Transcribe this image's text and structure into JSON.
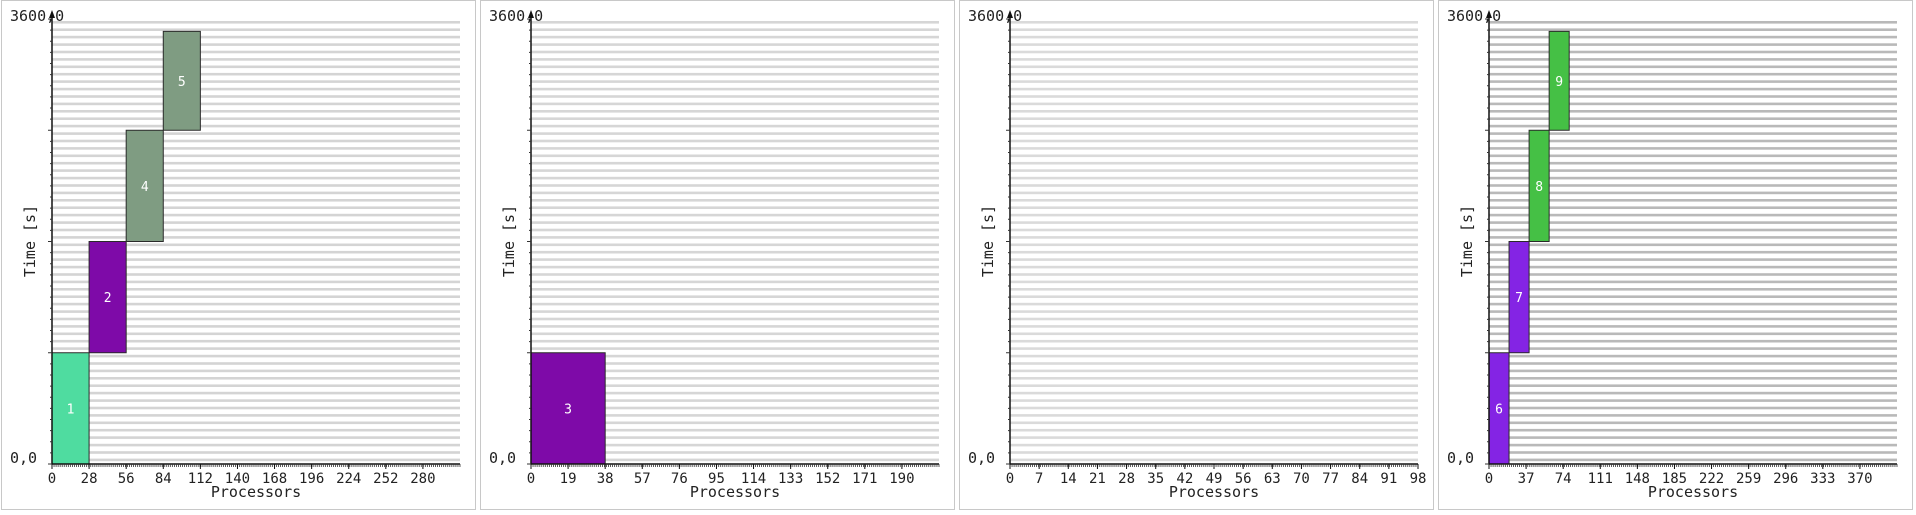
{
  "charts": [
    {
      "type": "gantt",
      "ylabel": "Time [s]",
      "xlabel": "Processors",
      "ymin_label": "0,0",
      "ymax_label": "3600,0",
      "ylim": [
        0,
        3600
      ],
      "xlim": [
        0,
        308
      ],
      "xticks": [
        0,
        28,
        56,
        84,
        112,
        140,
        168,
        196,
        224,
        252,
        280
      ],
      "stripe_color": "#d4d4d4",
      "jobs": [
        {
          "id": "1",
          "x0": 0,
          "x1": 28,
          "y0": 0,
          "y1": 900,
          "color": "#4fdca0"
        },
        {
          "id": "2",
          "x0": 28,
          "x1": 56,
          "y0": 900,
          "y1": 1800,
          "color": "#7e0aa8"
        },
        {
          "id": "4",
          "x0": 56,
          "x1": 84,
          "y0": 1800,
          "y1": 2700,
          "color": "#7f9c82"
        },
        {
          "id": "5",
          "x0": 84,
          "x1": 112,
          "y0": 2700,
          "y1": 3500,
          "color": "#7f9c82"
        }
      ]
    },
    {
      "type": "gantt",
      "ylabel": "Time [s]",
      "xlabel": "Processors",
      "ymin_label": "0,0",
      "ymax_label": "3600,0",
      "ylim": [
        0,
        3600
      ],
      "xlim": [
        0,
        209
      ],
      "xticks": [
        0,
        19,
        38,
        57,
        76,
        95,
        114,
        133,
        152,
        171,
        190
      ],
      "stripe_color": "#d6d6d6",
      "jobs": [
        {
          "id": "3",
          "x0": 0,
          "x1": 38,
          "y0": 0,
          "y1": 900,
          "color": "#7e0aa8"
        }
      ]
    },
    {
      "type": "gantt",
      "ylabel": "Time [s]",
      "xlabel": "Processors",
      "ymin_label": "0,0",
      "ymax_label": "3600,0",
      "ylim": [
        0,
        3600
      ],
      "xlim": [
        0,
        98
      ],
      "xticks": [
        0,
        7,
        14,
        21,
        28,
        35,
        42,
        49,
        56,
        63,
        70,
        77,
        84,
        91,
        98
      ],
      "stripe_color": "#dadada",
      "jobs": []
    },
    {
      "type": "gantt",
      "ylabel": "Time [s]",
      "xlabel": "Processors",
      "ymin_label": "0,0",
      "ymax_label": "3600,0",
      "ylim": [
        0,
        3600
      ],
      "xlim": [
        0,
        407
      ],
      "xticks": [
        0,
        37,
        74,
        111,
        148,
        185,
        222,
        259,
        296,
        333,
        370
      ],
      "stripe_color": "#b9b9b9",
      "jobs": [
        {
          "id": "6",
          "x0": 0,
          "x1": 20,
          "y0": 0,
          "y1": 900,
          "color": "#8424e4"
        },
        {
          "id": "7",
          "x0": 20,
          "x1": 40,
          "y0": 900,
          "y1": 1800,
          "color": "#8424e4"
        },
        {
          "id": "8",
          "x0": 40,
          "x1": 60,
          "y0": 1800,
          "y1": 2700,
          "color": "#45c045"
        },
        {
          "id": "9",
          "x0": 60,
          "x1": 80,
          "y0": 2700,
          "y1": 3500,
          "color": "#45c045"
        }
      ]
    }
  ]
}
